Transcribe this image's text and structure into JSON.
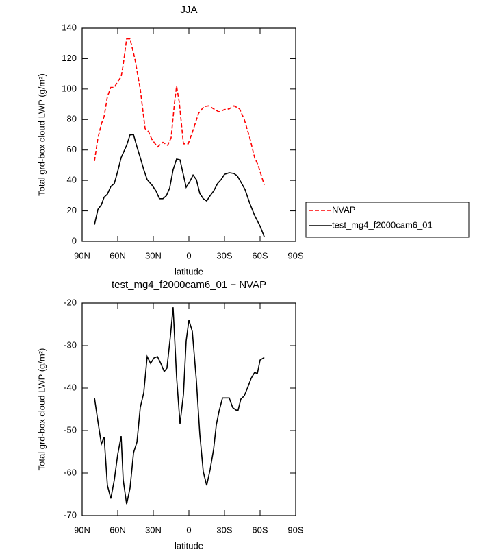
{
  "chart_data": [
    {
      "type": "line",
      "title": "JJA",
      "xlabel": "latitude",
      "ylabel": "Total grd-box cloud LWP (g/m²)",
      "xlim": [
        90,
        -90
      ],
      "xticks": [
        {
          "value": 90,
          "label": "90N"
        },
        {
          "value": 60,
          "label": "60N"
        },
        {
          "value": 30,
          "label": "30N"
        },
        0,
        {
          "value": -30,
          "label": "30S"
        },
        {
          "value": -60,
          "label": "60S"
        },
        {
          "value": -90,
          "label": "90S"
        }
      ],
      "ylim": [
        0,
        140
      ],
      "yticks": [
        0,
        20,
        40,
        60,
        80,
        100,
        120,
        140
      ],
      "legend": "outside-right",
      "series": [
        {
          "name": "NVAP",
          "color": "#ff0000",
          "dash": true,
          "x": [
            79.6,
            76.7,
            73.8,
            71.5,
            68.7,
            65.8,
            62.9,
            60,
            57.1,
            55.4,
            52.5,
            49.6,
            45.6,
            41,
            36.9,
            34,
            31.2,
            26.5,
            21.9,
            17.9,
            15,
            12.1,
            10.4,
            8.1,
            4.6,
            0.6,
            -3.5,
            -8.1,
            -12.7,
            -16.7,
            -20.8,
            -25.4,
            -30,
            -34,
            -38,
            -42.7,
            -46.7,
            -51.3,
            -55.4,
            -58.3,
            -63.5
          ],
          "values": [
            52.7,
            68,
            77,
            82,
            95,
            101,
            101,
            105,
            108,
            116,
            133,
            133,
            120,
            100,
            74,
            72,
            67,
            62,
            65,
            63,
            68,
            91,
            102,
            91,
            64,
            64,
            73,
            84,
            88.5,
            89,
            87,
            85,
            86.5,
            87,
            89,
            87,
            80,
            68,
            55,
            50,
            37
          ]
        },
        {
          "name": "test_mg4_f2000cam6_01",
          "color": "#000000",
          "dash": false,
          "x": [
            79.6,
            76.7,
            73.8,
            71.5,
            68.7,
            65.8,
            62.9,
            60,
            57.1,
            52.5,
            49.6,
            46.7,
            43.8,
            41,
            38,
            35.2,
            31.2,
            27.7,
            24.8,
            21.9,
            19,
            16.2,
            13.3,
            10.4,
            7.5,
            4.6,
            2.3,
            -0.6,
            -3.5,
            -6.3,
            -9.2,
            -12.1,
            -15,
            -17.9,
            -20.8,
            -24.2,
            -27.1,
            -30,
            -34,
            -38,
            -40.8,
            -43.8,
            -47.3,
            -51.3,
            -55.4,
            -60,
            -63.5
          ],
          "values": [
            11,
            21,
            24,
            29,
            31,
            36,
            38,
            46,
            55,
            63,
            70,
            70,
            62,
            55,
            47,
            40.5,
            37,
            33,
            28,
            28,
            30,
            35,
            47,
            54,
            53.5,
            43.5,
            35.5,
            39,
            43.5,
            40.5,
            31.5,
            28,
            26.5,
            30,
            33,
            38,
            40.5,
            44,
            45,
            44.5,
            43,
            39,
            34,
            25,
            17,
            10,
            3
          ]
        }
      ]
    },
    {
      "type": "line",
      "title": "test_mg4_f2000cam6_01 − NVAP",
      "xlabel": "latitude",
      "ylabel": "Total grd-box cloud LWP (g/m²)",
      "xlim": [
        90,
        -90
      ],
      "xticks": [
        {
          "value": 90,
          "label": "90N"
        },
        {
          "value": 60,
          "label": "60N"
        },
        {
          "value": 30,
          "label": "30N"
        },
        0,
        {
          "value": -30,
          "label": "30S"
        },
        {
          "value": -60,
          "label": "60S"
        },
        {
          "value": -90,
          "label": "90S"
        }
      ],
      "ylim": [
        -70,
        -20
      ],
      "yticks": [
        -70,
        -60,
        -50,
        -40,
        -30,
        -20
      ],
      "series": [
        {
          "color": "#000000",
          "dash": false,
          "x": [
            79.6,
            76.7,
            73.8,
            71.5,
            68.7,
            65.8,
            62.9,
            60,
            57.1,
            55.4,
            52.5,
            49.6,
            46.7,
            43.8,
            41,
            38.1,
            35.2,
            32.3,
            29.4,
            26.5,
            23.7,
            20.8,
            18.5,
            15.6,
            13.3,
            10.4,
            7.5,
            4.6,
            2.3,
            0,
            -2.9,
            -6.3,
            -9.2,
            -12.1,
            -15,
            -17.9,
            -20.8,
            -23.1,
            -25.4,
            -28.3,
            -31.2,
            -34,
            -36.9,
            -39.8,
            -41.5,
            -43.8,
            -46.7,
            -49.6,
            -52.5,
            -55.4,
            -57.7,
            -60,
            -63.5
          ],
          "values": [
            -42.3,
            -47.9,
            -53.2,
            -51.5,
            -62.9,
            -66,
            -61.6,
            -55.6,
            -51.3,
            -61.6,
            -67.3,
            -63.5,
            -55.2,
            -52.7,
            -44.6,
            -41.1,
            -32.6,
            -34.2,
            -32.9,
            -32.6,
            -34.2,
            -36.1,
            -35.3,
            -27.7,
            -21,
            -37.4,
            -48.4,
            -41.5,
            -28.9,
            -24,
            -26.7,
            -38.2,
            -50.8,
            -59.7,
            -62.9,
            -59.2,
            -54.4,
            -48.7,
            -45.5,
            -42.3,
            -42.3,
            -42.3,
            -44.6,
            -45.2,
            -45.2,
            -42.6,
            -41.8,
            -39.8,
            -37.7,
            -36.3,
            -36.6,
            -33.4,
            -32.8
          ]
        }
      ]
    }
  ]
}
